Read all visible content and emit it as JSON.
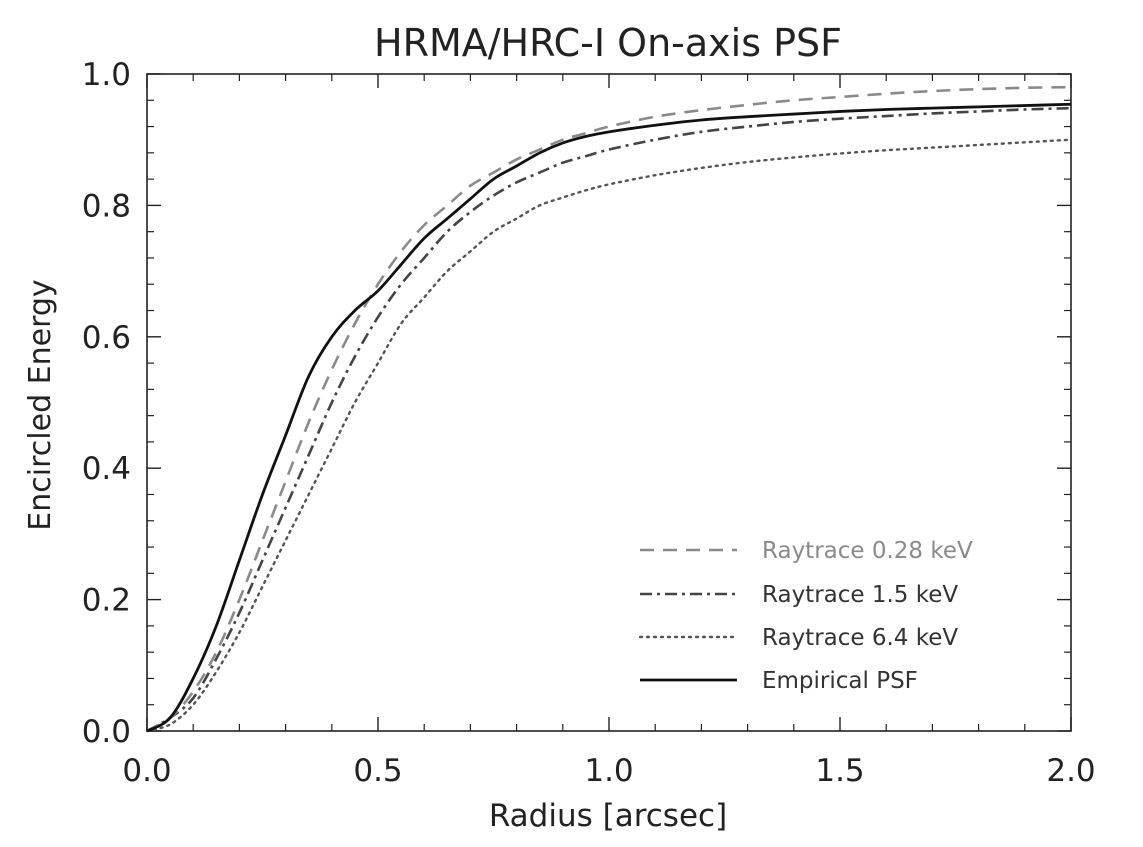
{
  "chart_data": {
    "type": "line",
    "title": "HRMA/HRC-I On-axis PSF",
    "xlabel": "Radius [arcsec]",
    "ylabel": "Encircled Energy",
    "xlim": [
      0.0,
      2.0
    ],
    "ylim": [
      0.0,
      1.0
    ],
    "xticks": [
      0.0,
      0.5,
      1.0,
      1.5,
      2.0
    ],
    "xtick_labels": [
      "0.0",
      "0.5",
      "1.0",
      "1.5",
      "2.0"
    ],
    "yticks": [
      0.0,
      0.2,
      0.4,
      0.6,
      0.8,
      1.0
    ],
    "ytick_labels": [
      "0.0",
      "0.2",
      "0.4",
      "0.6",
      "0.8",
      "1.0"
    ],
    "grid": false,
    "legend_position": "bottom-right",
    "x": [
      0.0,
      0.05,
      0.1,
      0.15,
      0.2,
      0.25,
      0.3,
      0.35,
      0.4,
      0.45,
      0.5,
      0.55,
      0.6,
      0.65,
      0.7,
      0.75,
      0.8,
      0.85,
      0.9,
      0.95,
      1.0,
      1.1,
      1.2,
      1.3,
      1.4,
      1.5,
      1.6,
      1.7,
      1.8,
      1.9,
      2.0
    ],
    "series": [
      {
        "name": "Raytrace 0.28 keV",
        "style": "dashed",
        "color": "#8a8a8a",
        "values": [
          0.0,
          0.02,
          0.06,
          0.12,
          0.2,
          0.29,
          0.38,
          0.47,
          0.55,
          0.62,
          0.68,
          0.73,
          0.77,
          0.8,
          0.83,
          0.85,
          0.87,
          0.885,
          0.9,
          0.91,
          0.92,
          0.935,
          0.945,
          0.953,
          0.96,
          0.965,
          0.97,
          0.974,
          0.977,
          0.979,
          0.98
        ]
      },
      {
        "name": "Raytrace 1.5 keV",
        "style": "dashdot",
        "color": "#444444",
        "values": [
          0.0,
          0.02,
          0.05,
          0.11,
          0.18,
          0.26,
          0.34,
          0.42,
          0.5,
          0.57,
          0.63,
          0.68,
          0.72,
          0.76,
          0.79,
          0.815,
          0.835,
          0.85,
          0.865,
          0.875,
          0.885,
          0.9,
          0.912,
          0.92,
          0.927,
          0.932,
          0.936,
          0.94,
          0.943,
          0.946,
          0.948
        ]
      },
      {
        "name": "Raytrace 6.4 keV",
        "style": "dotted",
        "color": "#555555",
        "values": [
          0.0,
          0.01,
          0.04,
          0.09,
          0.15,
          0.22,
          0.29,
          0.36,
          0.43,
          0.5,
          0.56,
          0.62,
          0.66,
          0.7,
          0.73,
          0.76,
          0.78,
          0.8,
          0.812,
          0.823,
          0.832,
          0.846,
          0.857,
          0.866,
          0.873,
          0.879,
          0.884,
          0.888,
          0.892,
          0.896,
          0.9
        ]
      },
      {
        "name": "Empirical PSF",
        "style": "solid",
        "color": "#111111",
        "values": [
          0.0,
          0.02,
          0.08,
          0.16,
          0.26,
          0.36,
          0.45,
          0.54,
          0.6,
          0.64,
          0.67,
          0.71,
          0.75,
          0.78,
          0.81,
          0.84,
          0.86,
          0.88,
          0.895,
          0.905,
          0.912,
          0.922,
          0.93,
          0.935,
          0.939,
          0.943,
          0.946,
          0.948,
          0.95,
          0.952,
          0.954
        ]
      }
    ]
  }
}
